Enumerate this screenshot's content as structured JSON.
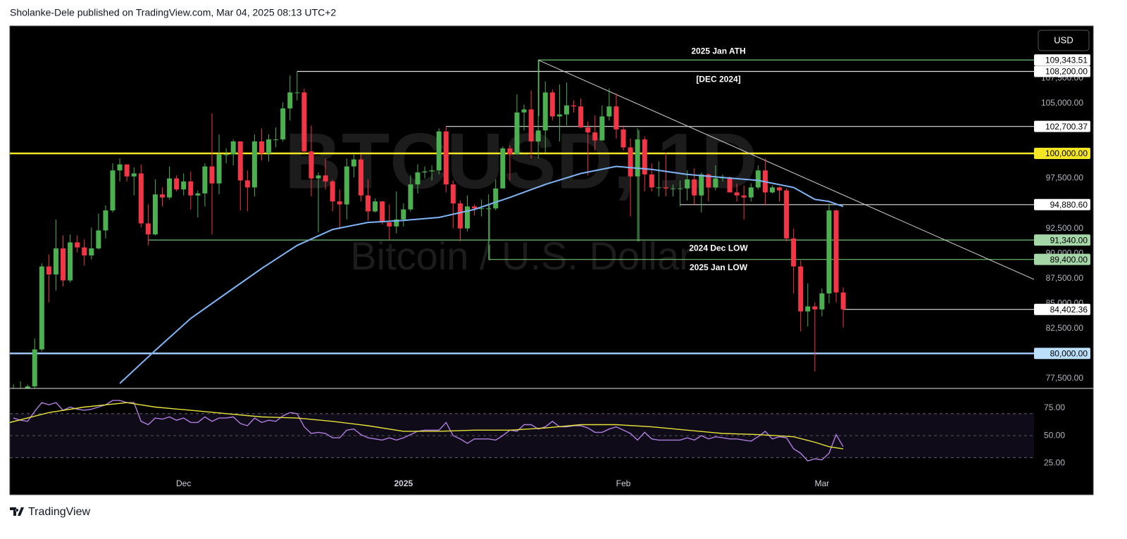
{
  "header": {
    "text": "Sholanke-Dele published on TradingView.com, Mar 04, 2025 08:13 UTC+2"
  },
  "footer": {
    "brand": "TradingView"
  },
  "currency_button": "USD",
  "chart_data": [
    {
      "type": "candlestick",
      "watermark": "BTCUSD, 1D",
      "subtitle": "Bitcoin / U.S. Dollar",
      "up_color": "#4caf50",
      "down_color": "#f23645",
      "xlim": [
        -0.5,
        143.9
      ],
      "ylim": [
        76500,
        112670
      ],
      "yticks": [
        {
          "value": 77500,
          "label": "77,500.00"
        },
        {
          "value": 82500,
          "label": "82,500.00"
        },
        {
          "value": 85000,
          "label": "85,000.00"
        },
        {
          "value": 87500,
          "label": "87,500.00"
        },
        {
          "value": 90000,
          "label": "90,000.00"
        },
        {
          "value": 92500,
          "label": "92,500.00"
        },
        {
          "value": 97500,
          "label": "97,500.00"
        },
        {
          "value": 105000,
          "label": "105,000.00"
        },
        {
          "value": 107500,
          "label": "107,500.00"
        }
      ],
      "open": [
        75600,
        75900,
        76500,
        76700,
        80400,
        88700,
        87900,
        90500,
        87300,
        91100,
        90600,
        89800,
        90500,
        92300,
        94300,
        98300,
        98900,
        97700,
        98000,
        93000,
        91900,
        95900,
        95600,
        97500,
        96400,
        97200,
        95800,
        96000,
        98700,
        97000,
        99900,
        99900,
        101200,
        97300,
        96600,
        101200,
        100000,
        101400,
        101400,
        104500,
        106100,
        106100,
        100200,
        97500,
        97800,
        97200,
        95200,
        94900,
        98700,
        99400,
        95800,
        94200,
        95200,
        93100,
        92700,
        93400,
        94400,
        96900,
        98100,
        98200,
        98300,
        102200,
        96900,
        95000,
        92500,
        94700,
        94500,
        94500,
        94500,
        96500,
        100500,
        99900,
        104100,
        104400,
        101200,
        102300,
        106100,
        103700,
        103900,
        104800,
        104700,
        102600,
        102100,
        101300,
        103700,
        104700,
        102400,
        100600,
        97700,
        101400,
        97900,
        96600,
        96600,
        96500,
        96500,
        96500,
        97400,
        95800,
        97900,
        96600,
        97500,
        97600,
        96100,
        95800,
        95600,
        96600,
        98300,
        96100,
        96600,
        96300,
        91500,
        88700,
        84200,
        84700,
        84400,
        86000,
        94300,
        86100
      ],
      "high": [
        76900,
        77200,
        76900,
        81500,
        89000,
        89900,
        93400,
        91800,
        91900,
        91800,
        91400,
        92600,
        94000,
        94800,
        99000,
        99500,
        98900,
        98600,
        98900,
        94900,
        97400,
        96600,
        98700,
        97800,
        98000,
        98200,
        96300,
        99000,
        104000,
        101900,
        100500,
        101400,
        101200,
        98300,
        101900,
        102500,
        101900,
        102600,
        105100,
        107800,
        108200,
        106500,
        102800,
        98100,
        99500,
        97400,
        96400,
        99500,
        99900,
        99900,
        97400,
        95500,
        95200,
        94900,
        96200,
        95000,
        97800,
        98900,
        98700,
        98800,
        102500,
        102700,
        97300,
        95300,
        95800,
        94900,
        95400,
        95900,
        97400,
        100700,
        100800,
        105900,
        104900,
        106300,
        109343.51,
        107200,
        106400,
        106900,
        107100,
        105300,
        105500,
        103200,
        103800,
        104800,
        106500,
        106000,
        102800,
        101500,
        102500,
        101700,
        99000,
        99200,
        100100,
        96900,
        97300,
        98300,
        98500,
        98100,
        98000,
        98800,
        97900,
        97700,
        97000,
        96800,
        97000,
        98800,
        99500,
        96800,
        96700,
        96500,
        92500,
        89300,
        87000,
        85100,
        86500,
        95000,
        94400,
        86600
      ],
      "low": [
        74500,
        75600,
        75700,
        76500,
        80200,
        85100,
        86300,
        86700,
        87100,
        90100,
        88800,
        89400,
        90400,
        91500,
        94100,
        97200,
        97200,
        95800,
        92600,
        90800,
        91800,
        94700,
        95400,
        96200,
        95800,
        94400,
        93600,
        94700,
        91900,
        95900,
        99000,
        98800,
        94300,
        94200,
        95700,
        99300,
        99200,
        100600,
        101200,
        103300,
        105300,
        100000,
        95700,
        92100,
        96400,
        94200,
        92400,
        93400,
        97600,
        95200,
        93300,
        94100,
        92900,
        91340,
        92000,
        92700,
        94200,
        96000,
        97500,
        97300,
        97900,
        96100,
        92500,
        91200,
        92200,
        93800,
        93700,
        89400,
        94300,
        96500,
        97300,
        99900,
        102300,
        99500,
        99500,
        100100,
        103300,
        101200,
        102800,
        104100,
        102500,
        97800,
        100300,
        101300,
        103300,
        101500,
        100300,
        93700,
        91200,
        96200,
        96200,
        95700,
        95700,
        95700,
        94700,
        95300,
        94900,
        94100,
        95200,
        96300,
        97200,
        96100,
        95200,
        93400,
        95200,
        96400,
        94800,
        96000,
        95200,
        91200,
        86000,
        82200,
        82700,
        78200,
        83700,
        85000,
        85100,
        82600
      ],
      "close": [
        75900,
        76500,
        76700,
        80400,
        88700,
        87900,
        90500,
        87300,
        91100,
        90600,
        89800,
        90500,
        92300,
        94300,
        98300,
        98900,
        97700,
        98000,
        93000,
        91900,
        95900,
        95600,
        97500,
        96400,
        97200,
        95800,
        96000,
        98700,
        97000,
        99900,
        99900,
        101200,
        97300,
        96600,
        101200,
        100000,
        101400,
        101400,
        104500,
        106100,
        106100,
        100200,
        97500,
        97800,
        97200,
        95200,
        94900,
        98700,
        99400,
        95800,
        94200,
        95200,
        93100,
        92700,
        93400,
        94400,
        96900,
        98100,
        98200,
        98300,
        102200,
        96900,
        95000,
        92500,
        94700,
        94500,
        94500,
        94500,
        96500,
        100500,
        99900,
        104100,
        104400,
        101200,
        102300,
        106100,
        103700,
        103900,
        104800,
        104700,
        102600,
        102100,
        101300,
        103700,
        104700,
        102400,
        100600,
        97700,
        101400,
        97900,
        96600,
        96600,
        96500,
        96500,
        96500,
        97400,
        95800,
        97900,
        96600,
        97500,
        97600,
        96100,
        95800,
        95600,
        96600,
        98300,
        96100,
        96600,
        96300,
        91500,
        88700,
        84200,
        84700,
        84400,
        86000,
        94300,
        86100,
        84402.36
      ],
      "ma": {
        "color": "#7fb4f5",
        "x": [
          15,
          20,
          25,
          30,
          35,
          40,
          45,
          50,
          55,
          60,
          65,
          70,
          75,
          80,
          85,
          90,
          95,
          100,
          105,
          110,
          113,
          115,
          117
        ],
        "values": [
          77000,
          80300,
          83500,
          86000,
          88500,
          90800,
          92400,
          93100,
          93300,
          93600,
          94400,
          95600,
          96900,
          98000,
          98700,
          98400,
          97900,
          97600,
          97300,
          96600,
          95400,
          95200,
          94700
        ]
      },
      "trendline": {
        "color": "#d0d0d0",
        "x": [
          74,
          143.9
        ],
        "values": [
          109343.51,
          87400
        ]
      },
      "levels": [
        {
          "value": 109343.51,
          "label": "109,343.51",
          "x": 74,
          "color": "#6fbf73",
          "label_bg": "#ffffff",
          "note": "2025 Jan ATH",
          "note_side": "above"
        },
        {
          "value": 108200,
          "label": "108,200.00",
          "x": 40,
          "color": "#e0e0e0",
          "label_bg": "#ffffff",
          "note": "[DEC 2024]",
          "note_side": "below"
        },
        {
          "value": 102700.37,
          "label": "102,700.37",
          "x": 61,
          "color": "#e0e0e0",
          "label_bg": "#ffffff"
        },
        {
          "value": 100000,
          "label": "100,000.00",
          "color": "#f5e625",
          "label_bg": "#f5e625"
        },
        {
          "value": 94880.6,
          "label": "94,880.60",
          "x": 94,
          "color": "#e0e0e0",
          "label_bg": "#ffffff"
        },
        {
          "value": 91340,
          "label": "91,340.00",
          "x": 19,
          "color": "#6fbf73",
          "label_bg": "#a5d6a7",
          "note": "2024 Dec LOW",
          "note_side": "below"
        },
        {
          "value": 89400,
          "label": "89,400.00",
          "x": 67,
          "color": "#6fbf73",
          "label_bg": "#a5d6a7",
          "note": "2025 Jan LOW",
          "note_side": "below"
        },
        {
          "value": 84402.36,
          "label": "84,402.36",
          "x": 117,
          "color": "#e0e0e0",
          "label_bg": "#ffffff"
        },
        {
          "value": 80000,
          "label": "80,000.00",
          "color": "#9ec5f7",
          "label_bg": "#bbdefb"
        }
      ]
    },
    {
      "type": "line",
      "xlim": [
        -0.5,
        143.9
      ],
      "ylim": [
        -3,
        91
      ],
      "yticks": [
        {
          "value": 75,
          "label": "75.00"
        },
        {
          "value": 50,
          "label": "50.00"
        },
        {
          "value": 25,
          "label": "25.00"
        }
      ],
      "xticks": [
        {
          "value": 24,
          "label": "Dec"
        },
        {
          "value": 55,
          "label": "2025"
        },
        {
          "value": 86,
          "label": "Feb"
        },
        {
          "value": 114,
          "label": "Mar"
        }
      ],
      "bands": [
        70,
        30
      ],
      "midline": 50,
      "series": [
        {
          "color": "#b07ee0",
          "values": [
            66,
            64,
            63,
            72,
            80,
            78,
            80,
            73,
            76,
            74,
            73,
            74,
            76,
            78,
            82,
            82,
            80,
            80,
            63,
            60,
            66,
            65,
            67,
            64,
            66,
            62,
            62,
            67,
            63,
            66,
            66,
            67,
            61,
            59,
            66,
            62,
            64,
            63,
            68,
            71,
            70,
            58,
            52,
            53,
            52,
            48,
            48,
            55,
            56,
            51,
            48,
            47,
            46,
            48,
            46,
            48,
            51,
            54,
            55,
            55,
            55,
            62,
            50,
            47,
            43,
            47,
            47,
            47,
            46,
            50,
            55,
            54,
            60,
            60,
            56,
            58,
            63,
            58,
            58,
            59,
            59,
            57,
            53,
            53,
            56,
            58,
            55,
            52,
            46,
            53,
            47,
            46,
            46,
            46,
            46,
            48,
            46,
            50,
            47,
            49,
            48,
            47,
            47,
            46,
            45,
            49,
            54,
            47,
            49,
            48,
            38,
            34,
            27,
            29,
            28,
            34,
            51,
            40
          ]
        },
        {
          "color": "#e6e23a",
          "x": [
            -0.5,
            5,
            10,
            16,
            20,
            25,
            30,
            35,
            40,
            45,
            50,
            55,
            60,
            65,
            70,
            75,
            80,
            85,
            90,
            95,
            100,
            105,
            110,
            113,
            115,
            117
          ],
          "values": [
            62,
            71,
            76,
            80,
            76,
            73,
            70,
            67,
            66,
            63,
            59,
            54,
            54,
            55,
            55,
            57,
            60,
            60,
            58,
            55,
            52,
            51,
            49,
            44,
            40,
            38
          ]
        }
      ]
    }
  ]
}
